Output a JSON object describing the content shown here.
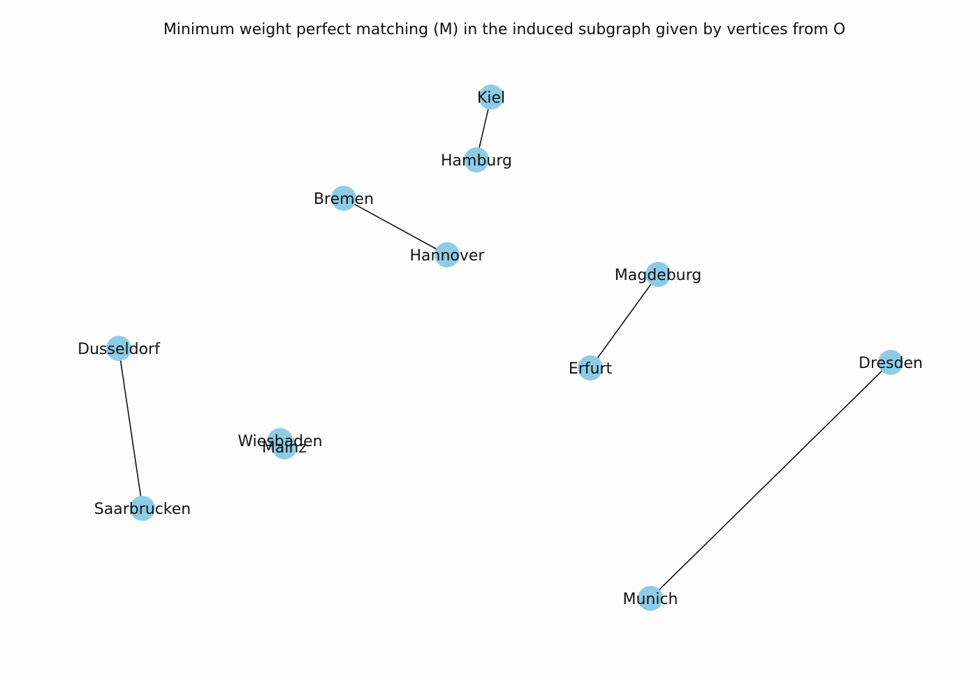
{
  "title": "Minimum weight perfect matching (M) in the induced subgraph given by vertices from O",
  "colors": {
    "node_fill": "#8ecce6",
    "edge": "#111111",
    "label": "#111111",
    "background": "#fdfdfd"
  },
  "nodes": [
    {
      "id": "kiel",
      "label": "Kiel"
    },
    {
      "id": "hamburg",
      "label": "Hamburg"
    },
    {
      "id": "bremen",
      "label": "Bremen"
    },
    {
      "id": "hannover",
      "label": "Hannover"
    },
    {
      "id": "magdeburg",
      "label": "Magdeburg"
    },
    {
      "id": "erfurt",
      "label": "Erfurt"
    },
    {
      "id": "dusseldorf",
      "label": "Dusseldorf"
    },
    {
      "id": "saarbrucken",
      "label": "Saarbrucken"
    },
    {
      "id": "wiesbaden",
      "label": "Wiesbaden"
    },
    {
      "id": "mainz",
      "label": "Mainz"
    },
    {
      "id": "dresden",
      "label": "Dresden"
    },
    {
      "id": "munich",
      "label": "Munich"
    }
  ],
  "edges": [
    {
      "source": "kiel",
      "target": "hamburg"
    },
    {
      "source": "bremen",
      "target": "hannover"
    },
    {
      "source": "magdeburg",
      "target": "erfurt"
    },
    {
      "source": "dusseldorf",
      "target": "saarbrucken"
    },
    {
      "source": "wiesbaden",
      "target": "mainz"
    },
    {
      "source": "dresden",
      "target": "munich"
    }
  ]
}
